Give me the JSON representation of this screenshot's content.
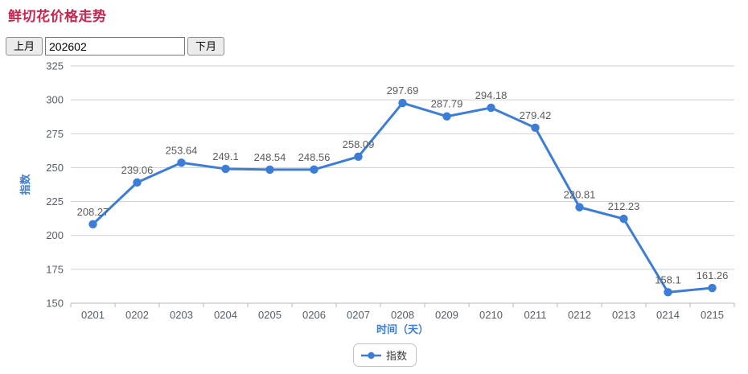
{
  "header": {
    "title": "鲜切花价格走势"
  },
  "controls": {
    "prev_label": "上月",
    "month_value": "202602",
    "next_label": "下月"
  },
  "chart_data": {
    "type": "line",
    "categories": [
      "0201",
      "0202",
      "0203",
      "0204",
      "0205",
      "0206",
      "0207",
      "0208",
      "0209",
      "0210",
      "0211",
      "0212",
      "0213",
      "0214",
      "0215"
    ],
    "series": [
      {
        "name": "指数",
        "values": [
          208.27,
          239.06,
          253.64,
          249.1,
          248.54,
          248.56,
          258.09,
          297.69,
          287.79,
          294.18,
          279.42,
          220.81,
          212.23,
          158.1,
          161.26
        ]
      }
    ],
    "xlabel": "时间（天）",
    "ylabel": "指数",
    "ylim": [
      150,
      325
    ],
    "y_ticks": [
      150,
      175,
      200,
      225,
      250,
      275,
      300,
      325
    ],
    "grid": true,
    "legend_position": "bottom",
    "colors": {
      "line": "#3b7dd8",
      "point_label": "#5c5c5c",
      "tick_label": "#545f6a",
      "axis_name": "#3b7dd8",
      "gridline": "#cdd1d6",
      "axis_line": "#b3b9bf"
    }
  }
}
